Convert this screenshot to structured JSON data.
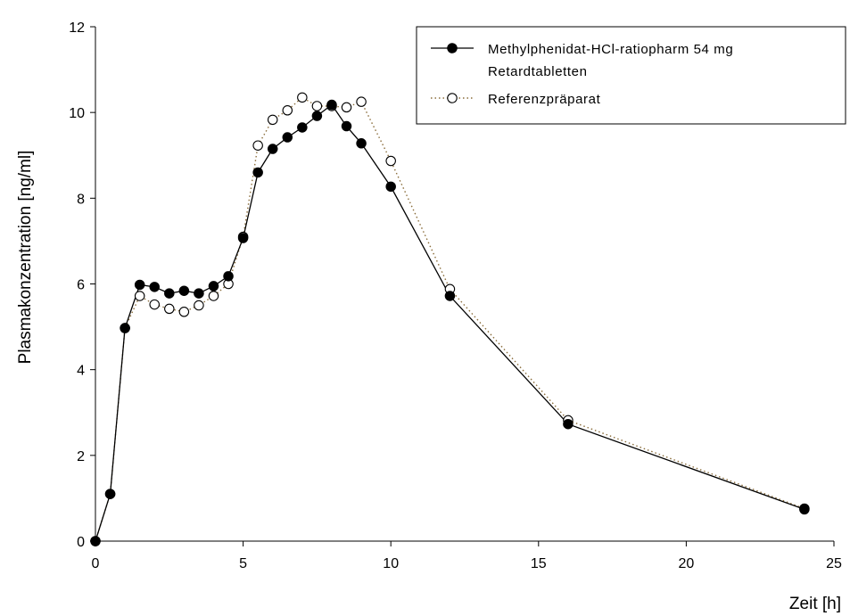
{
  "chart_data": {
    "type": "line",
    "title": "",
    "xlabel": "Zeit [h]",
    "ylabel": "Plasmakonzentration [ng/ml]",
    "xlim": [
      0,
      25
    ],
    "ylim": [
      0,
      12
    ],
    "xticks": [
      0,
      5,
      10,
      15,
      20,
      25
    ],
    "yticks": [
      0,
      2,
      4,
      6,
      8,
      10,
      12
    ],
    "grid": false,
    "legend_position": "top-right",
    "series": [
      {
        "name_lines": [
          "Methylphenidat-HCl-ratiopharm 54 mg",
          "Retardtabletten"
        ],
        "style": "solid-filled-circle",
        "color": "#000000",
        "x": [
          0,
          0.5,
          1,
          1.5,
          2,
          2.5,
          3,
          3.5,
          4,
          4.5,
          5,
          5.5,
          6,
          6.5,
          7,
          7.5,
          8,
          8.5,
          9,
          10,
          12,
          16,
          24
        ],
        "y": [
          0,
          1.1,
          4.97,
          5.98,
          5.93,
          5.78,
          5.84,
          5.78,
          5.95,
          6.18,
          7.07,
          8.6,
          9.15,
          9.42,
          9.65,
          9.92,
          10.18,
          9.68,
          9.28,
          8.27,
          5.72,
          2.73,
          0.74
        ]
      },
      {
        "name_lines": [
          "Referenzpräparat"
        ],
        "style": "dotted-open-circle",
        "color": "#8a6d3b",
        "x": [
          0,
          0.5,
          1,
          1.5,
          2,
          2.5,
          3,
          3.5,
          4,
          4.5,
          5,
          5.5,
          6,
          6.5,
          7,
          7.5,
          8,
          8.5,
          9,
          10,
          12,
          16,
          24
        ],
        "y": [
          0,
          1.1,
          4.97,
          5.72,
          5.52,
          5.42,
          5.35,
          5.5,
          5.72,
          6.0,
          7.1,
          9.23,
          9.83,
          10.05,
          10.35,
          10.15,
          10.15,
          10.12,
          10.25,
          8.87,
          5.88,
          2.82,
          0.76
        ]
      }
    ]
  }
}
